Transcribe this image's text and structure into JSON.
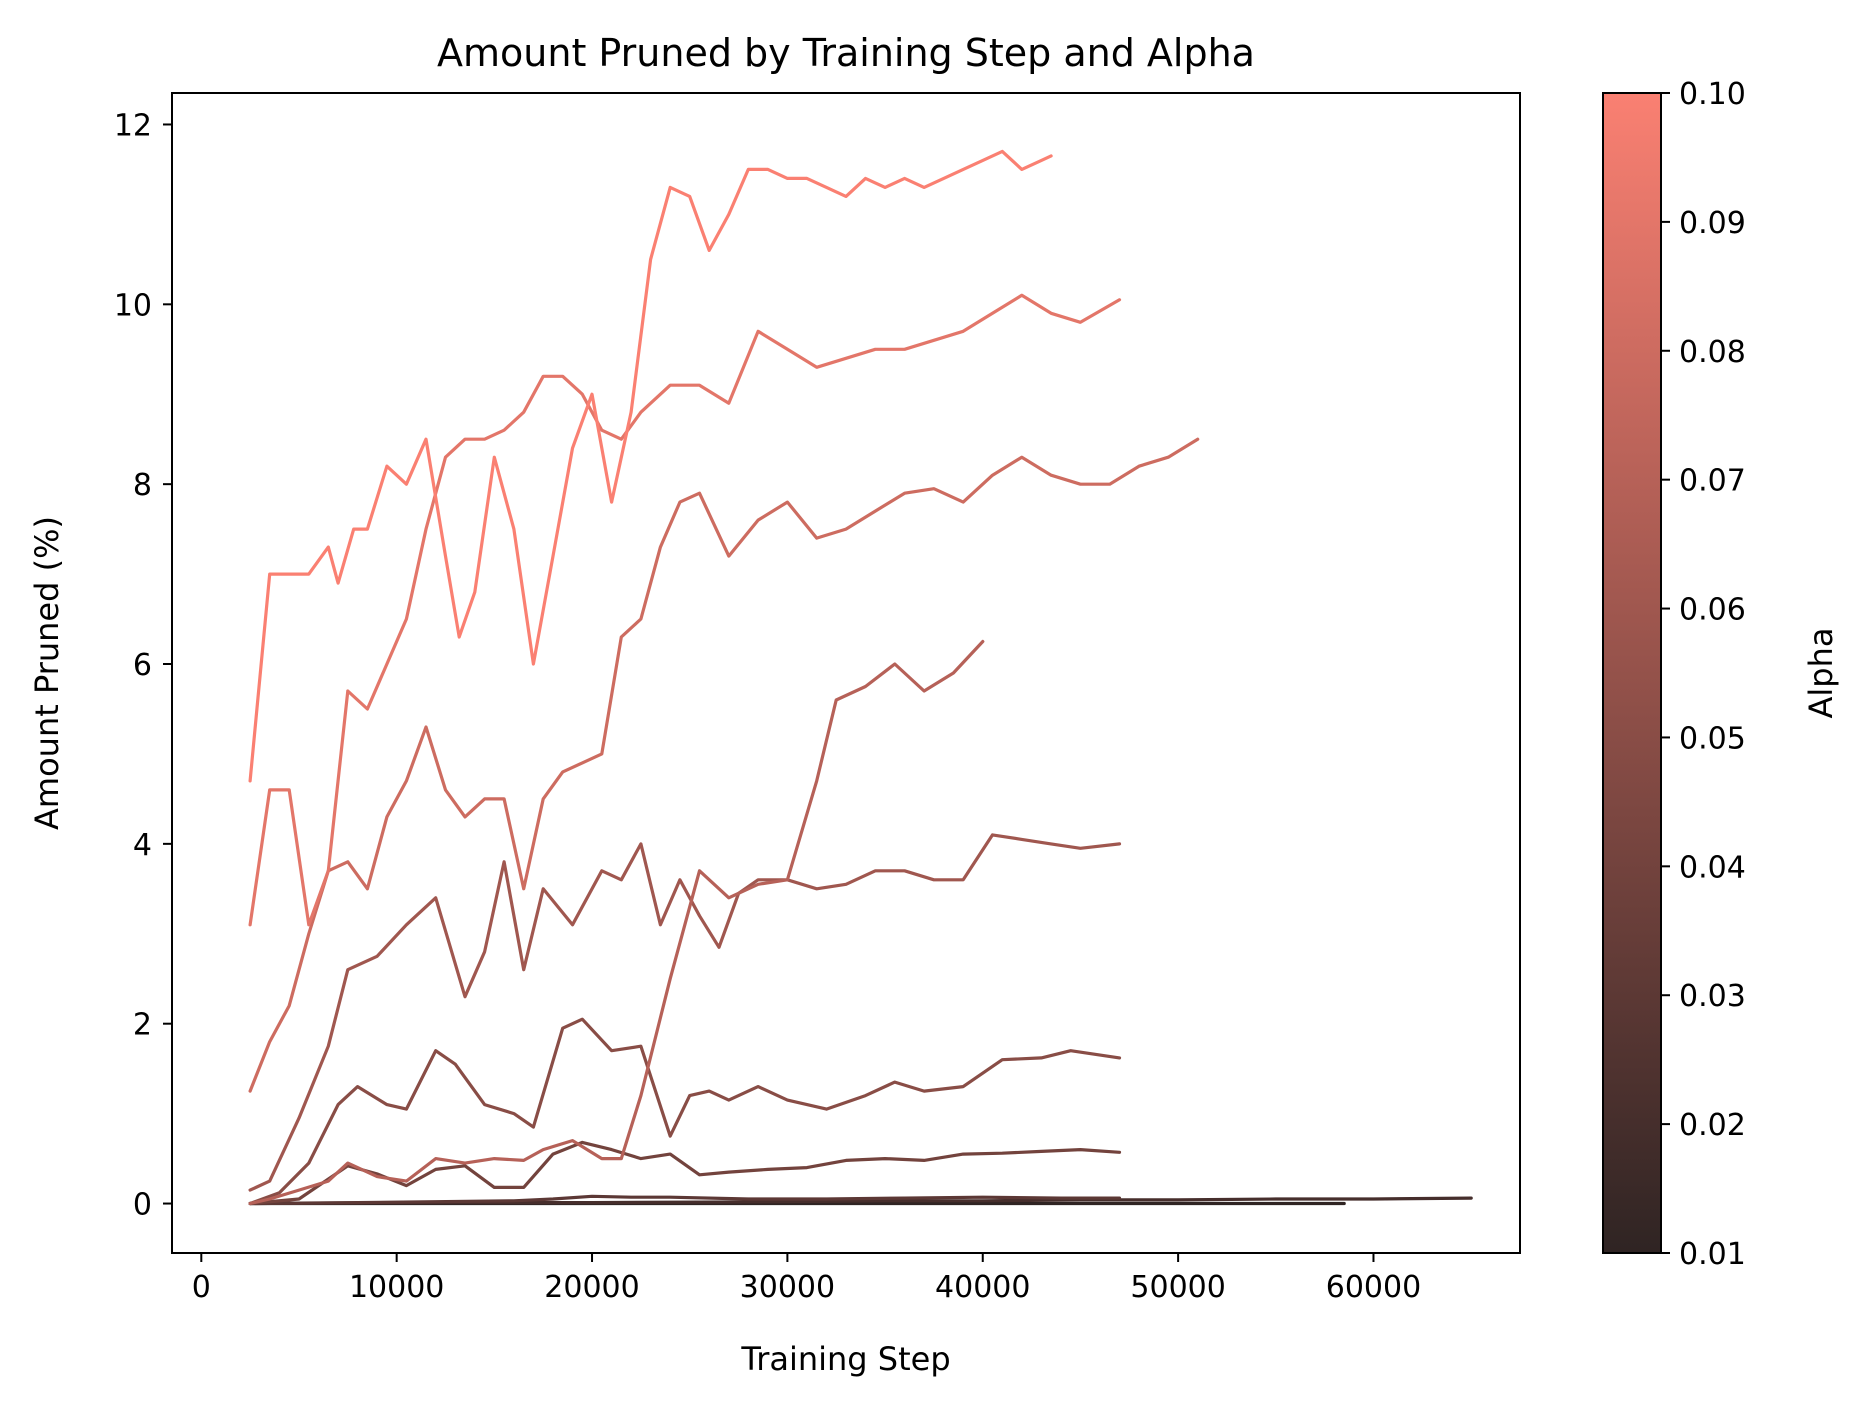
{
  "chart_data": {
    "type": "line",
    "title": "Amount Pruned by Training Step and Alpha",
    "xlabel": "Training Step",
    "ylabel": "Amount Pruned (%)",
    "xlim": [
      -1500,
      67500
    ],
    "ylim": [
      -0.55,
      12.35
    ],
    "xticks": [
      0,
      10000,
      20000,
      30000,
      40000,
      50000,
      60000
    ],
    "yticks": [
      0,
      2,
      4,
      6,
      8,
      10,
      12
    ],
    "grid": false,
    "colorbar": {
      "label": "Alpha",
      "range": [
        0.01,
        0.1
      ],
      "ticks": [
        "0.01",
        "0.02",
        "0.03",
        "0.04",
        "0.05",
        "0.06",
        "0.07",
        "0.08",
        "0.09",
        "0.10"
      ],
      "color_low": "#2f2423",
      "color_high": "#fa8072"
    },
    "series": [
      {
        "name": "alpha=0.01",
        "alpha": 0.01,
        "x": [
          2500,
          10000,
          20000,
          30000,
          40000,
          50000,
          58500
        ],
        "y": [
          0.0,
          0.0,
          0.0,
          0.0,
          0.0,
          0.0,
          0.0
        ]
      },
      {
        "name": "alpha=0.02",
        "alpha": 0.02,
        "x": [
          2500,
          10000,
          20000,
          30000,
          35000,
          40000,
          45000,
          50000,
          55000,
          60000,
          65000
        ],
        "y": [
          0.0,
          0.01,
          0.01,
          0.02,
          0.03,
          0.03,
          0.04,
          0.04,
          0.05,
          0.05,
          0.06
        ]
      },
      {
        "name": "alpha=0.03",
        "alpha": 0.03,
        "x": [
          2500,
          8000,
          12000,
          16000,
          18000,
          20000,
          22000,
          24000,
          28000,
          32000,
          36000,
          40000,
          44000,
          47000
        ],
        "y": [
          0.0,
          0.01,
          0.02,
          0.03,
          0.05,
          0.08,
          0.07,
          0.07,
          0.05,
          0.05,
          0.06,
          0.07,
          0.06,
          0.06
        ]
      },
      {
        "name": "alpha=0.04",
        "alpha": 0.04,
        "x": [
          2500,
          5000,
          7500,
          9000,
          10500,
          12000,
          13500,
          15000,
          16500,
          18000,
          19500,
          21000,
          22500,
          24000,
          25500,
          27000,
          29000,
          31000,
          33000,
          35000,
          37000,
          39000,
          41000,
          43000,
          45000,
          47000
        ],
        "y": [
          0.0,
          0.05,
          0.42,
          0.33,
          0.2,
          0.38,
          0.42,
          0.18,
          0.18,
          0.55,
          0.68,
          0.6,
          0.5,
          0.55,
          0.32,
          0.35,
          0.38,
          0.4,
          0.48,
          0.5,
          0.48,
          0.55,
          0.56,
          0.58,
          0.6,
          0.57
        ]
      },
      {
        "name": "alpha=0.05",
        "alpha": 0.05,
        "x": [
          2500,
          4000,
          5500,
          7000,
          8000,
          9500,
          10500,
          12000,
          13000,
          14500,
          16000,
          17000,
          18500,
          19500,
          21000,
          22500,
          24000,
          25000,
          26000,
          27000,
          28500,
          30000,
          32000,
          34000,
          35500,
          37000,
          39000,
          41000,
          43000,
          44500,
          47000
        ],
        "y": [
          0.0,
          0.12,
          0.45,
          1.1,
          1.3,
          1.1,
          1.05,
          1.7,
          1.55,
          1.1,
          1.0,
          0.85,
          1.95,
          2.05,
          1.7,
          1.75,
          0.75,
          1.2,
          1.25,
          1.15,
          1.3,
          1.15,
          1.05,
          1.2,
          1.35,
          1.25,
          1.3,
          1.6,
          1.62,
          1.7,
          1.62
        ]
      },
      {
        "name": "alpha=0.06",
        "alpha": 0.06,
        "x": [
          2500,
          3500,
          5000,
          6500,
          7500,
          9000,
          10500,
          12000,
          13500,
          14500,
          15500,
          16500,
          17500,
          19000,
          20500,
          21500,
          22500,
          23500,
          24500,
          25500,
          26500,
          27500,
          28500,
          30000,
          31500,
          33000,
          34500,
          36000,
          37500,
          39000,
          40500,
          42000,
          43500,
          45000,
          47000
        ],
        "y": [
          0.15,
          0.25,
          0.95,
          1.75,
          2.6,
          2.75,
          3.1,
          3.4,
          2.3,
          2.8,
          3.8,
          2.6,
          3.5,
          3.1,
          3.7,
          3.6,
          4.0,
          3.1,
          3.6,
          3.2,
          2.85,
          3.45,
          3.6,
          3.6,
          3.5,
          3.55,
          3.7,
          3.7,
          3.6,
          3.6,
          4.1,
          4.05,
          4.0,
          3.95,
          4.0
        ]
      },
      {
        "name": "alpha=0.07",
        "alpha": 0.07,
        "x": [
          2500,
          3500,
          5000,
          6500,
          7500,
          9000,
          10500,
          12000,
          13500,
          15000,
          16500,
          17500,
          19000,
          20500,
          21500,
          22500,
          24000,
          25500,
          27000,
          28500,
          30000,
          31500,
          32500,
          34000,
          35500,
          37000,
          38500,
          40000
        ],
        "y": [
          0.0,
          0.05,
          0.15,
          0.25,
          0.45,
          0.3,
          0.25,
          0.5,
          0.45,
          0.5,
          0.48,
          0.6,
          0.7,
          0.5,
          0.5,
          1.2,
          2.5,
          3.7,
          3.4,
          3.55,
          3.6,
          4.7,
          5.6,
          5.75,
          6.0,
          5.7,
          5.9,
          6.25
        ]
      },
      {
        "name": "alpha=0.08",
        "alpha": 0.08,
        "x": [
          2500,
          3500,
          4500,
          5500,
          6500,
          7500,
          8500,
          9500,
          10500,
          11500,
          12500,
          13500,
          14500,
          15500,
          16500,
          17500,
          18500,
          19500,
          20500,
          21500,
          22500,
          23500,
          24500,
          25500,
          27000,
          28500,
          30000,
          31500,
          33000,
          34500,
          36000,
          37500,
          39000,
          40500,
          42000,
          43500,
          45000,
          46500,
          48000,
          49500,
          51000
        ],
        "y": [
          1.25,
          1.8,
          2.2,
          3.0,
          3.7,
          3.8,
          3.5,
          4.3,
          4.7,
          5.3,
          4.6,
          4.3,
          4.5,
          4.5,
          3.5,
          4.5,
          4.8,
          4.9,
          5.0,
          6.3,
          6.5,
          7.3,
          7.8,
          7.9,
          7.2,
          7.6,
          7.8,
          7.4,
          7.5,
          7.7,
          7.9,
          7.95,
          7.8,
          8.1,
          8.3,
          8.1,
          8.0,
          8.0,
          8.2,
          8.3,
          8.5
        ]
      },
      {
        "name": "alpha=0.09",
        "alpha": 0.09,
        "x": [
          2500,
          3500,
          4500,
          5500,
          6500,
          7500,
          8500,
          9500,
          10500,
          11500,
          12500,
          13500,
          14500,
          15500,
          16500,
          17500,
          18500,
          19500,
          20500,
          21500,
          22500,
          24000,
          25500,
          27000,
          28500,
          30000,
          31500,
          33000,
          34500,
          36000,
          37500,
          39000,
          40500,
          42000,
          43500,
          45000,
          47000
        ],
        "y": [
          3.1,
          4.6,
          4.6,
          3.1,
          3.7,
          5.7,
          5.5,
          6.0,
          6.5,
          7.5,
          8.3,
          8.5,
          8.5,
          8.6,
          8.8,
          9.2,
          9.2,
          9.0,
          8.6,
          8.5,
          8.8,
          9.1,
          9.1,
          8.9,
          9.7,
          9.5,
          9.3,
          9.4,
          9.5,
          9.5,
          9.6,
          9.7,
          9.9,
          10.1,
          9.9,
          9.8,
          10.05
        ]
      },
      {
        "name": "alpha=0.10",
        "alpha": 0.1,
        "x": [
          2500,
          3500,
          4500,
          5500,
          6500,
          7000,
          7800,
          8500,
          9500,
          10500,
          11500,
          12500,
          13200,
          14000,
          15000,
          16000,
          17000,
          18000,
          19000,
          20000,
          21000,
          22000,
          23000,
          24000,
          25000,
          26000,
          27000,
          28000,
          29000,
          30000,
          31000,
          32000,
          33000,
          34000,
          35000,
          36000,
          37000,
          38000,
          39000,
          40000,
          41000,
          42000,
          43000,
          43500
        ],
        "y": [
          4.7,
          7.0,
          7.0,
          7.0,
          7.3,
          6.9,
          7.5,
          7.5,
          8.2,
          8.0,
          8.5,
          7.2,
          6.3,
          6.8,
          8.3,
          7.5,
          6.0,
          7.2,
          8.4,
          9.0,
          7.8,
          8.8,
          10.5,
          11.3,
          11.2,
          10.6,
          11.0,
          11.5,
          11.5,
          11.4,
          11.4,
          11.3,
          11.2,
          11.4,
          11.3,
          11.4,
          11.3,
          11.4,
          11.5,
          11.6,
          11.7,
          11.5,
          11.6,
          11.65
        ]
      }
    ]
  }
}
